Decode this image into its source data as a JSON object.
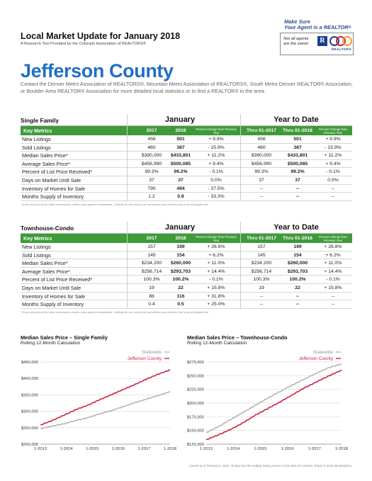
{
  "header": {
    "title": "Local Market Update for January 2018",
    "subtitle": "A Research Tool Provided by the Colorado Association of REALTORS®",
    "promo_line1": "Make Sure",
    "promo_line2": "Your Agent is a REALTOR",
    "promo_sup": "®",
    "badge_line1": "Not all agents",
    "badge_line2": "are the same!",
    "badge_logo_letter": "R",
    "badge_logo_word": "REALTORS"
  },
  "county": "Jefferson County",
  "intro": "Contact the Denver Metro Association of REALTORS®, Mountain Metro Association of REALTORS®, South Metro Denver REALTOR® Association, or Boulder Area REALTOR® Association for more detailed local statistics or to find a REALTOR® in the area.",
  "tables": [
    {
      "section": "Single Family",
      "group1": "January",
      "group2": "Year to Date",
      "col_metric": "Key Metrics",
      "cols": [
        "2017",
        "2018",
        "Percent Change from Previous Year",
        "Thru 01-2017",
        "Thru 01-2018",
        "Percent Change from Previous Year"
      ],
      "rows": [
        {
          "metric": "New Listings",
          "v": [
            "456",
            "501",
            "+ 9.9%",
            "456",
            "501",
            "+ 9.9%"
          ]
        },
        {
          "metric": "Sold Listings",
          "v": [
            "460",
            "387",
            "- 15.9%",
            "460",
            "387",
            "- 15.9%"
          ]
        },
        {
          "metric": "Median Sales Price*",
          "v": [
            "$390,000",
            "$433,801",
            "+ 11.2%",
            "$390,000",
            "$433,801",
            "+ 11.2%"
          ]
        },
        {
          "metric": "Average Sales Price*",
          "v": [
            "$456,990",
            "$500,085",
            "+ 9.4%",
            "$456,990",
            "$500,085",
            "+ 9.4%"
          ]
        },
        {
          "metric": "Percent of List Price Received*",
          "v": [
            "99.3%",
            "99.2%",
            "- 0.1%",
            "99.3%",
            "99.2%",
            "- 0.1%"
          ]
        },
        {
          "metric": "Days on Market Until Sale",
          "v": [
            "37",
            "37",
            "0.0%",
            "37",
            "37",
            "0.0%"
          ]
        },
        {
          "metric": "Inventory of Homes for Sale",
          "v": [
            "790",
            "494",
            "- 37.5%",
            "--",
            "--",
            "--"
          ]
        },
        {
          "metric": "Months Supply of Inventory",
          "v": [
            "1.2",
            "0.8",
            "- 33.3%",
            "--",
            "--",
            "--"
          ]
        }
      ],
      "footnote": "* Does not account for seller concessions and/or down payment assistance.  |  Activity for one month can sometimes look extreme due to small sample size."
    },
    {
      "section": "Townhouse-Condo",
      "group1": "January",
      "group2": "Year to Date",
      "col_metric": "Key Metrics",
      "cols": [
        "2017",
        "2018",
        "Percent Change from Previous Year",
        "Thru 01-2017",
        "Thru 01-2018",
        "Percent Change from Previous Year"
      ],
      "rows": [
        {
          "metric": "New Listings",
          "v": [
            "157",
            "199",
            "+ 26.8%",
            "157",
            "199",
            "+ 26.8%"
          ]
        },
        {
          "metric": "Sold Listings",
          "v": [
            "145",
            "154",
            "+ 6.2%",
            "145",
            "154",
            "+ 6.2%"
          ]
        },
        {
          "metric": "Median Sales Price*",
          "v": [
            "$234,200",
            "$260,000",
            "+ 11.0%",
            "$234,200",
            "$260,000",
            "+ 11.0%"
          ]
        },
        {
          "metric": "Average Sales Price*",
          "v": [
            "$256,714",
            "$293,703",
            "+ 14.4%",
            "$256,714",
            "$293,703",
            "+ 14.4%"
          ]
        },
        {
          "metric": "Percent of List Price Received*",
          "v": [
            "100.3%",
            "100.2%",
            "- 0.1%",
            "100.3%",
            "100.2%",
            "- 0.1%"
          ]
        },
        {
          "metric": "Days on Market Until Sale",
          "v": [
            "19",
            "22",
            "+ 15.8%",
            "19",
            "22",
            "+ 15.8%"
          ]
        },
        {
          "metric": "Inventory of Homes for Sale",
          "v": [
            "88",
            "116",
            "+ 31.8%",
            "--",
            "--",
            "--"
          ]
        },
        {
          "metric": "Months Supply of Inventory",
          "v": [
            "0.4",
            "0.5",
            "+ 25.0%",
            "--",
            "--",
            "--"
          ]
        }
      ],
      "footnote": "* Does not account for seller concessions and/or down payment assistance.  |  Activity for one month can sometimes look extreme due to small sample size."
    }
  ],
  "colors": {
    "green": "#3f9a3a",
    "blue": "#1f6fc5",
    "statewide": "#b5b5b5",
    "county": "#d11f3e"
  },
  "chart_data": [
    {
      "type": "line",
      "title": "Median Sales Price – Single Family",
      "subtitle": "Rolling 12-Month Calculation",
      "x_ticks": [
        "1-2013",
        "1-2014",
        "1-2015",
        "1-2016",
        "1-2017",
        "1-2018"
      ],
      "y_ticks": [
        "$450,000",
        "$400,000",
        "$350,000",
        "$300,000",
        "$250,000",
        "$200,000"
      ],
      "ylim": [
        200000,
        450000
      ],
      "legend_placement": "top-right",
      "series": [
        {
          "name": "Statewide",
          "color": "#b5b5b5",
          "values": [
            247000,
            255000,
            262000,
            272000,
            280000,
            292000,
            302000,
            314000,
            326000,
            337000,
            348000,
            360000
          ]
        },
        {
          "name": "Jefferson County",
          "color": "#d11f3e",
          "values": [
            258000,
            272000,
            288000,
            305000,
            318000,
            335000,
            350000,
            366000,
            381000,
            398000,
            413000,
            426000
          ]
        }
      ]
    },
    {
      "type": "line",
      "title": "Median Sales Price – Townhouse-Condo",
      "subtitle": "Rolling 12-Month Calculation",
      "x_ticks": [
        "1-2013",
        "1-2014",
        "1-2015",
        "1-2016",
        "1-2017",
        "1-2018"
      ],
      "y_ticks": [
        "$275,000",
        "$250,000",
        "$225,000",
        "$200,000",
        "$175,000",
        "$150,000",
        "$125,000"
      ],
      "ylim": [
        125000,
        275000
      ],
      "legend_placement": "top-right",
      "series": [
        {
          "name": "Statewide",
          "color": "#b5b5b5",
          "values": [
            146000,
            157000,
            170000,
            183000,
            196000,
            209000,
            221000,
            233000,
            244000,
            255000,
            265000,
            271000
          ]
        },
        {
          "name": "Jefferson County",
          "color": "#d11f3e",
          "values": [
            133000,
            142000,
            152000,
            164000,
            178000,
            190000,
            202000,
            215000,
            228000,
            239000,
            250000,
            260000
          ]
        }
      ]
    }
  ],
  "bottom_note": "Current as of February 5, 2018. All data from the multiple listing services in the state of Colorado. Report © 2018 ShowingTime."
}
